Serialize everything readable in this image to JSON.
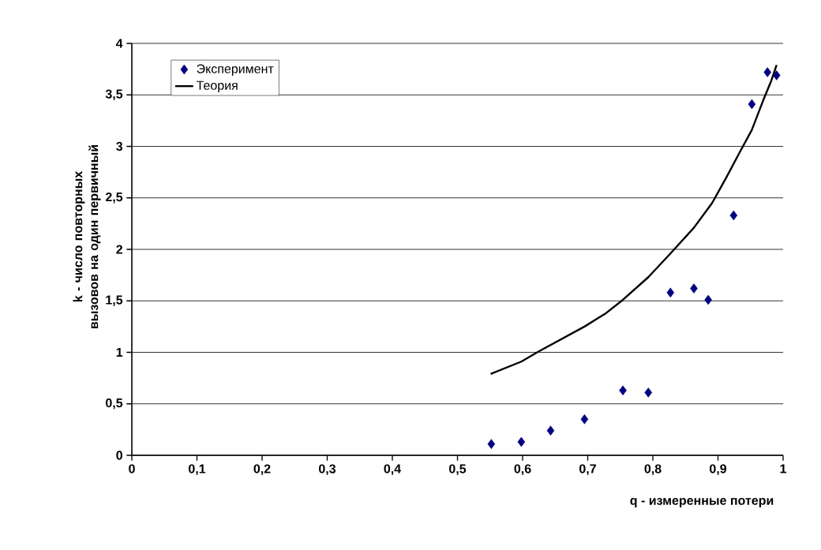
{
  "chart_data": {
    "type": "scatter",
    "xlabel": "q - измеренные потери",
    "ylabel": "k - число повторных вызовов на один первичный",
    "xlim": [
      0,
      1
    ],
    "ylim": [
      0,
      4
    ],
    "xticks": [
      0,
      {
        "value": 0.1,
        "label": "0,1"
      },
      {
        "value": 0.2,
        "label": "0,2"
      },
      {
        "value": 0.3,
        "label": "0,3"
      },
      {
        "value": 0.4,
        "label": "0,4"
      },
      {
        "value": 0.5,
        "label": "0,5"
      },
      {
        "value": 0.6,
        "label": "0,6"
      },
      {
        "value": 0.7,
        "label": "0,7"
      },
      {
        "value": 0.8,
        "label": "0,8"
      },
      {
        "value": 0.9,
        "label": "0,9"
      },
      1
    ],
    "yticks": [
      0,
      {
        "value": 0.5,
        "label": "0,5"
      },
      1,
      {
        "value": 1.5,
        "label": "1,5"
      },
      2,
      {
        "value": 2.5,
        "label": "2,5"
      },
      3,
      {
        "value": 3.5,
        "label": "3,5"
      },
      4
    ],
    "grid": "y",
    "legend": "top left",
    "series": [
      {
        "name": "Эксперимент",
        "marker": "diamond",
        "color": "#000080",
        "x": [
          0.552,
          0.598,
          0.643,
          0.695,
          0.754,
          0.793,
          0.827,
          0.863,
          0.885,
          0.924,
          0.952,
          0.976,
          0.99
        ],
        "values": [
          0.11,
          0.13,
          0.24,
          0.35,
          0.63,
          0.61,
          1.58,
          1.62,
          1.51,
          2.33,
          3.41,
          3.72,
          3.69
        ]
      },
      {
        "name": "Теория",
        "type": "line",
        "marker": "none",
        "line_style": "solid",
        "color": "#000000",
        "x": [
          0.551,
          0.598,
          0.625,
          0.695,
          0.728,
          0.754,
          0.793,
          0.827,
          0.863,
          0.891,
          0.913,
          0.934,
          0.952,
          0.969,
          0.982,
          0.99
        ],
        "values": [
          0.79,
          0.91,
          1.01,
          1.25,
          1.38,
          1.51,
          1.73,
          1.96,
          2.21,
          2.45,
          2.7,
          2.95,
          3.16,
          3.44,
          3.64,
          3.79
        ]
      }
    ]
  }
}
